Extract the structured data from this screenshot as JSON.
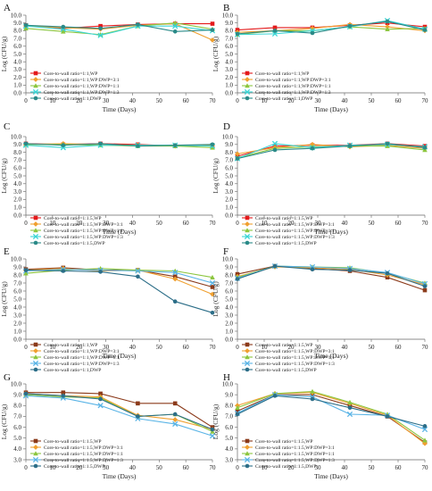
{
  "chart_data": [
    {
      "panel": "A",
      "type": "line",
      "x": [
        0,
        14,
        28,
        42,
        56,
        70
      ],
      "xlabel": "Time (Days)",
      "ylabel": "Log (CFU/g)",
      "xlim": [
        0,
        70
      ],
      "ylim": [
        0,
        10
      ],
      "yticks": [
        0,
        1,
        2,
        3,
        4,
        5,
        6,
        7,
        8,
        9,
        10
      ],
      "legend_position": "bottom-left",
      "series": [
        {
          "name": "Core-to-wall ratio=1:1,WP",
          "color": "#e41a1c",
          "marker": "square",
          "values": [
            8.7,
            8.3,
            8.6,
            8.8,
            8.9,
            8.9
          ]
        },
        {
          "name": "Core-to-wall ratio=1:1,WP:DWP=3:1",
          "color": "#f0a030",
          "marker": "diamond",
          "values": [
            8.6,
            8.4,
            8.2,
            8.7,
            8.9,
            6.8
          ]
        },
        {
          "name": "Core-to-wall ratio=1:1,WP:DWP=1:1",
          "color": "#8cc63f",
          "marker": "triangle",
          "values": [
            8.3,
            7.9,
            7.5,
            8.6,
            9.0,
            8.2
          ]
        },
        {
          "name": "Core-to-wall ratio=1:1,WP:DWP=1:3",
          "color": "#3ad6d6",
          "marker": "cross",
          "values": [
            8.6,
            8.2,
            7.4,
            8.6,
            8.6,
            8.0
          ]
        },
        {
          "name": "Core-to-wall ratio=1:1,DWP",
          "color": "#2a8a88",
          "marker": "circle",
          "values": [
            8.7,
            8.5,
            8.3,
            8.8,
            7.9,
            8.1
          ]
        }
      ]
    },
    {
      "panel": "B",
      "type": "line",
      "x": [
        0,
        14,
        28,
        42,
        56,
        70
      ],
      "xlabel": "Time (Days)",
      "ylabel": "Log (CFU/g)",
      "xlim": [
        0,
        70
      ],
      "ylim": [
        0,
        10
      ],
      "yticks": [
        0,
        1,
        2,
        3,
        4,
        5,
        6,
        7,
        8,
        9,
        10
      ],
      "legend_position": "bottom-left",
      "series": [
        {
          "name": "Core-to-wall ratio=1:1,WP",
          "color": "#e41a1c",
          "marker": "square",
          "values": [
            8.1,
            8.4,
            8.4,
            8.7,
            9.0,
            8.5
          ]
        },
        {
          "name": "Core-to-wall ratio=1:1,WP:DWP=3:1",
          "color": "#f0a030",
          "marker": "diamond",
          "values": [
            7.8,
            8.0,
            8.3,
            8.8,
            8.5,
            8.0
          ]
        },
        {
          "name": "Core-to-wall ratio=1:1,WP:DWP=1:1",
          "color": "#8cc63f",
          "marker": "triangle",
          "values": [
            7.5,
            8.0,
            8.0,
            8.5,
            8.2,
            8.3
          ]
        },
        {
          "name": "Core-to-wall ratio=1:1,WP:DWP=1:3",
          "color": "#3ad6d6",
          "marker": "cross",
          "values": [
            7.5,
            7.6,
            8.0,
            8.5,
            9.3,
            8.2
          ]
        },
        {
          "name": "Core-to-wall ratio=1:1,DWP",
          "color": "#2a8a88",
          "marker": "circle",
          "values": [
            7.6,
            8.0,
            7.7,
            8.6,
            9.2,
            8.1
          ]
        }
      ]
    },
    {
      "panel": "C",
      "type": "line",
      "x": [
        0,
        14,
        28,
        42,
        56,
        70
      ],
      "xlabel": "Time (Days)",
      "ylabel": "Log (CFU/g)",
      "xlim": [
        0,
        70
      ],
      "ylim": [
        0,
        10
      ],
      "yticks": [
        0,
        1,
        2,
        3,
        4,
        5,
        6,
        7,
        8,
        9,
        10
      ],
      "legend_position": "bottom-left",
      "series": [
        {
          "name": "Core-to-wall ratio=1:1.5,WP",
          "color": "#e41a1c",
          "marker": "square",
          "values": [
            9.1,
            9.0,
            9.1,
            9.0,
            8.8,
            8.9
          ]
        },
        {
          "name": "Core-to-wall ratio=1:1.5,WP:DWP=3:1",
          "color": "#f0a030",
          "marker": "diamond",
          "values": [
            9.0,
            9.1,
            9.0,
            8.9,
            8.8,
            8.9
          ]
        },
        {
          "name": "Core-to-wall ratio=1:1.5,WP:DWP=1:1",
          "color": "#8cc63f",
          "marker": "triangle",
          "values": [
            9.0,
            9.0,
            8.9,
            8.8,
            8.8,
            8.6
          ]
        },
        {
          "name": "Core-to-wall ratio=1:1.5,WP:DWP=1:3",
          "color": "#3ad6d6",
          "marker": "cross",
          "values": [
            8.9,
            8.6,
            8.9,
            8.9,
            8.9,
            8.8
          ]
        },
        {
          "name": "Core-to-wall ratio=1:1.5,DWP",
          "color": "#2a8a88",
          "marker": "circle",
          "values": [
            9.1,
            8.9,
            9.1,
            8.8,
            8.9,
            9.0
          ]
        }
      ]
    },
    {
      "panel": "D",
      "type": "line",
      "x": [
        0,
        14,
        28,
        42,
        56,
        70
      ],
      "xlabel": "Time (Days)",
      "ylabel": "Log (CFU/g)",
      "xlim": [
        0,
        70
      ],
      "ylim": [
        0,
        10
      ],
      "yticks": [
        0,
        1,
        2,
        3,
        4,
        5,
        6,
        7,
        8,
        9,
        10
      ],
      "legend_position": "bottom-left",
      "series": [
        {
          "name": "Core-to-wall ratio=1:1.5,WP",
          "color": "#e41a1c",
          "marker": "square",
          "values": [
            7.5,
            8.8,
            8.9,
            8.9,
            9.1,
            8.8
          ]
        },
        {
          "name": "Core-to-wall ratio=1:1.5,WP:DWP=3:1",
          "color": "#f0a030",
          "marker": "diamond",
          "values": [
            7.8,
            8.6,
            9.0,
            8.7,
            8.9,
            8.5
          ]
        },
        {
          "name": "Core-to-wall ratio=1:1.5,WP:DWP=1:1",
          "color": "#8cc63f",
          "marker": "triangle",
          "values": [
            7.3,
            8.5,
            8.7,
            8.8,
            8.8,
            8.3
          ]
        },
        {
          "name": "Core-to-wall ratio=1:1.5,WP:DWP=1:3",
          "color": "#3ad6d6",
          "marker": "cross",
          "values": [
            7.2,
            9.1,
            8.6,
            8.9,
            9.0,
            8.7
          ]
        },
        {
          "name": "Core-to-wall ratio=1:1.5,DWP",
          "color": "#2a8a88",
          "marker": "circle",
          "values": [
            7.2,
            8.3,
            8.5,
            8.8,
            9.1,
            8.6
          ]
        }
      ]
    },
    {
      "panel": "E",
      "type": "line",
      "x": [
        0,
        14,
        28,
        42,
        56,
        70
      ],
      "xlabel": "Time (Days)",
      "ylabel": "Log (CFU/g)",
      "xlim": [
        0,
        70
      ],
      "ylim": [
        0,
        10
      ],
      "yticks": [
        0,
        1,
        2,
        3,
        4,
        5,
        6,
        7,
        8,
        9,
        10
      ],
      "legend_position": "bottom-left",
      "series": [
        {
          "name": "Core-to-wall ratio=1:1,WP",
          "color": "#8b3a1a",
          "marker": "square",
          "values": [
            8.7,
            8.9,
            8.6,
            8.6,
            7.8,
            6.5
          ]
        },
        {
          "name": "Core-to-wall ratio=1:1,WP:DWP=3:1",
          "color": "#f0a030",
          "marker": "diamond",
          "values": [
            8.6,
            8.8,
            8.5,
            8.6,
            7.5,
            5.6
          ]
        },
        {
          "name": "Core-to-wall ratio=1:1,WP:DWP=1:1",
          "color": "#8cc63f",
          "marker": "triangle",
          "values": [
            8.2,
            8.6,
            8.8,
            8.6,
            8.5,
            7.7
          ]
        },
        {
          "name": "Core-to-wall ratio=1:1,WP:DWP=1:3",
          "color": "#5ab4e6",
          "marker": "cross",
          "values": [
            8.5,
            8.7,
            8.6,
            8.5,
            8.3,
            7.0
          ]
        },
        {
          "name": "Core-to-wall ratio=1:1,DWP",
          "color": "#2c6e88",
          "marker": "circle",
          "values": [
            8.6,
            8.5,
            8.4,
            7.8,
            4.7,
            3.3
          ]
        }
      ]
    },
    {
      "panel": "F",
      "type": "line",
      "x": [
        0,
        14,
        28,
        42,
        56,
        70
      ],
      "xlabel": "Time (Days)",
      "ylabel": "Log (CFU/g)",
      "xlim": [
        0,
        70
      ],
      "ylim": [
        0,
        10
      ],
      "yticks": [
        0,
        1,
        2,
        3,
        4,
        5,
        6,
        7,
        8,
        9,
        10
      ],
      "legend_position": "bottom-left",
      "series": [
        {
          "name": "Core-to-wall ratio=1:1.5,WP",
          "color": "#8b3a1a",
          "marker": "square",
          "values": [
            8.1,
            9.1,
            8.8,
            8.5,
            7.7,
            6.1
          ]
        },
        {
          "name": "Core-to-wall ratio=1:1.5,WP:DWP=3:1",
          "color": "#f0a030",
          "marker": "diamond",
          "values": [
            7.8,
            9.0,
            8.9,
            8.7,
            8.0,
            6.8
          ]
        },
        {
          "name": "Core-to-wall ratio=1:1.5,WP:DWP=1:1",
          "color": "#8cc63f",
          "marker": "triangle",
          "values": [
            7.7,
            9.1,
            9.0,
            8.9,
            8.2,
            7.0
          ]
        },
        {
          "name": "Core-to-wall ratio=1:1.5,WP:DWP=1:3",
          "color": "#5ab4e6",
          "marker": "cross",
          "values": [
            7.6,
            9.1,
            9.0,
            8.8,
            8.3,
            6.9
          ]
        },
        {
          "name": "Core-to-wall ratio=1:1.5,DWP",
          "color": "#2c6e88",
          "marker": "circle",
          "values": [
            7.5,
            9.1,
            8.7,
            8.6,
            8.2,
            6.6
          ]
        }
      ]
    },
    {
      "panel": "G",
      "type": "line",
      "x": [
        0,
        14,
        28,
        42,
        56,
        70
      ],
      "xlabel": "Time (Days)",
      "ylabel": "Log (CFU/g)",
      "xlim": [
        0,
        70
      ],
      "ylim": [
        3,
        10
      ],
      "yticks": [
        3,
        4,
        5,
        6,
        7,
        8,
        9,
        10
      ],
      "legend_position": "bottom-left",
      "series": [
        {
          "name": "Core-to-wall ratio=1:1.5,WP",
          "color": "#8b3a1a",
          "marker": "square",
          "values": [
            9.2,
            9.2,
            9.1,
            8.2,
            8.2,
            6.0
          ]
        },
        {
          "name": "Core-to-wall ratio=1:1.5,WP:DWP=3:1",
          "color": "#f0a030",
          "marker": "diamond",
          "values": [
            9.1,
            8.9,
            8.8,
            7.1,
            6.7,
            5.8
          ]
        },
        {
          "name": "Core-to-wall ratio=1:1.5,WP:DWP=1:1",
          "color": "#8cc63f",
          "marker": "triangle",
          "values": [
            9.0,
            8.8,
            8.7,
            7.0,
            7.2,
            5.6
          ]
        },
        {
          "name": "Core-to-wall ratio=1:1.5,WP:DWP=1:3",
          "color": "#5ab4e6",
          "marker": "cross",
          "values": [
            8.9,
            8.7,
            8.0,
            6.8,
            6.3,
            5.2
          ]
        },
        {
          "name": "Core-to-wall ratio=1:1.5,DWP",
          "color": "#2c6e88",
          "marker": "circle",
          "values": [
            9.1,
            8.9,
            8.6,
            7.0,
            7.2,
            5.8
          ]
        }
      ]
    },
    {
      "panel": "H",
      "type": "line",
      "x": [
        0,
        14,
        28,
        42,
        56,
        70
      ],
      "xlabel": "Time (Days)",
      "ylabel": "Log (CFU/g)",
      "xlim": [
        0,
        70
      ],
      "ylim": [
        3,
        10
      ],
      "yticks": [
        3,
        4,
        5,
        6,
        7,
        8,
        9,
        10
      ],
      "legend_position": "bottom-left",
      "series": [
        {
          "name": "Core-to-wall ratio=1:1.5,WP",
          "color": "#8b3a1a",
          "marker": "square",
          "values": [
            7.5,
            9.0,
            9.0,
            8.0,
            7.0,
            4.6
          ]
        },
        {
          "name": "Core-to-wall ratio=1:1.5,WP:DWP=3:1",
          "color": "#f0a030",
          "marker": "diamond",
          "values": [
            8.0,
            9.1,
            9.2,
            8.2,
            7.1,
            4.5
          ]
        },
        {
          "name": "Core-to-wall ratio=1:1.5,WP:DWP=1:1",
          "color": "#8cc63f",
          "marker": "triangle",
          "values": [
            7.8,
            9.1,
            9.3,
            8.3,
            7.2,
            4.8
          ]
        },
        {
          "name": "Core-to-wall ratio=1:1.5,WP:DWP=1:3",
          "color": "#5ab4e6",
          "marker": "cross",
          "values": [
            7.3,
            9.0,
            8.8,
            7.2,
            7.1,
            5.8
          ]
        },
        {
          "name": "Core-to-wall ratio=1:1.5,DWP",
          "color": "#2c6e88",
          "marker": "circle",
          "values": [
            7.2,
            8.9,
            8.6,
            7.8,
            7.0,
            6.1
          ]
        }
      ]
    }
  ]
}
